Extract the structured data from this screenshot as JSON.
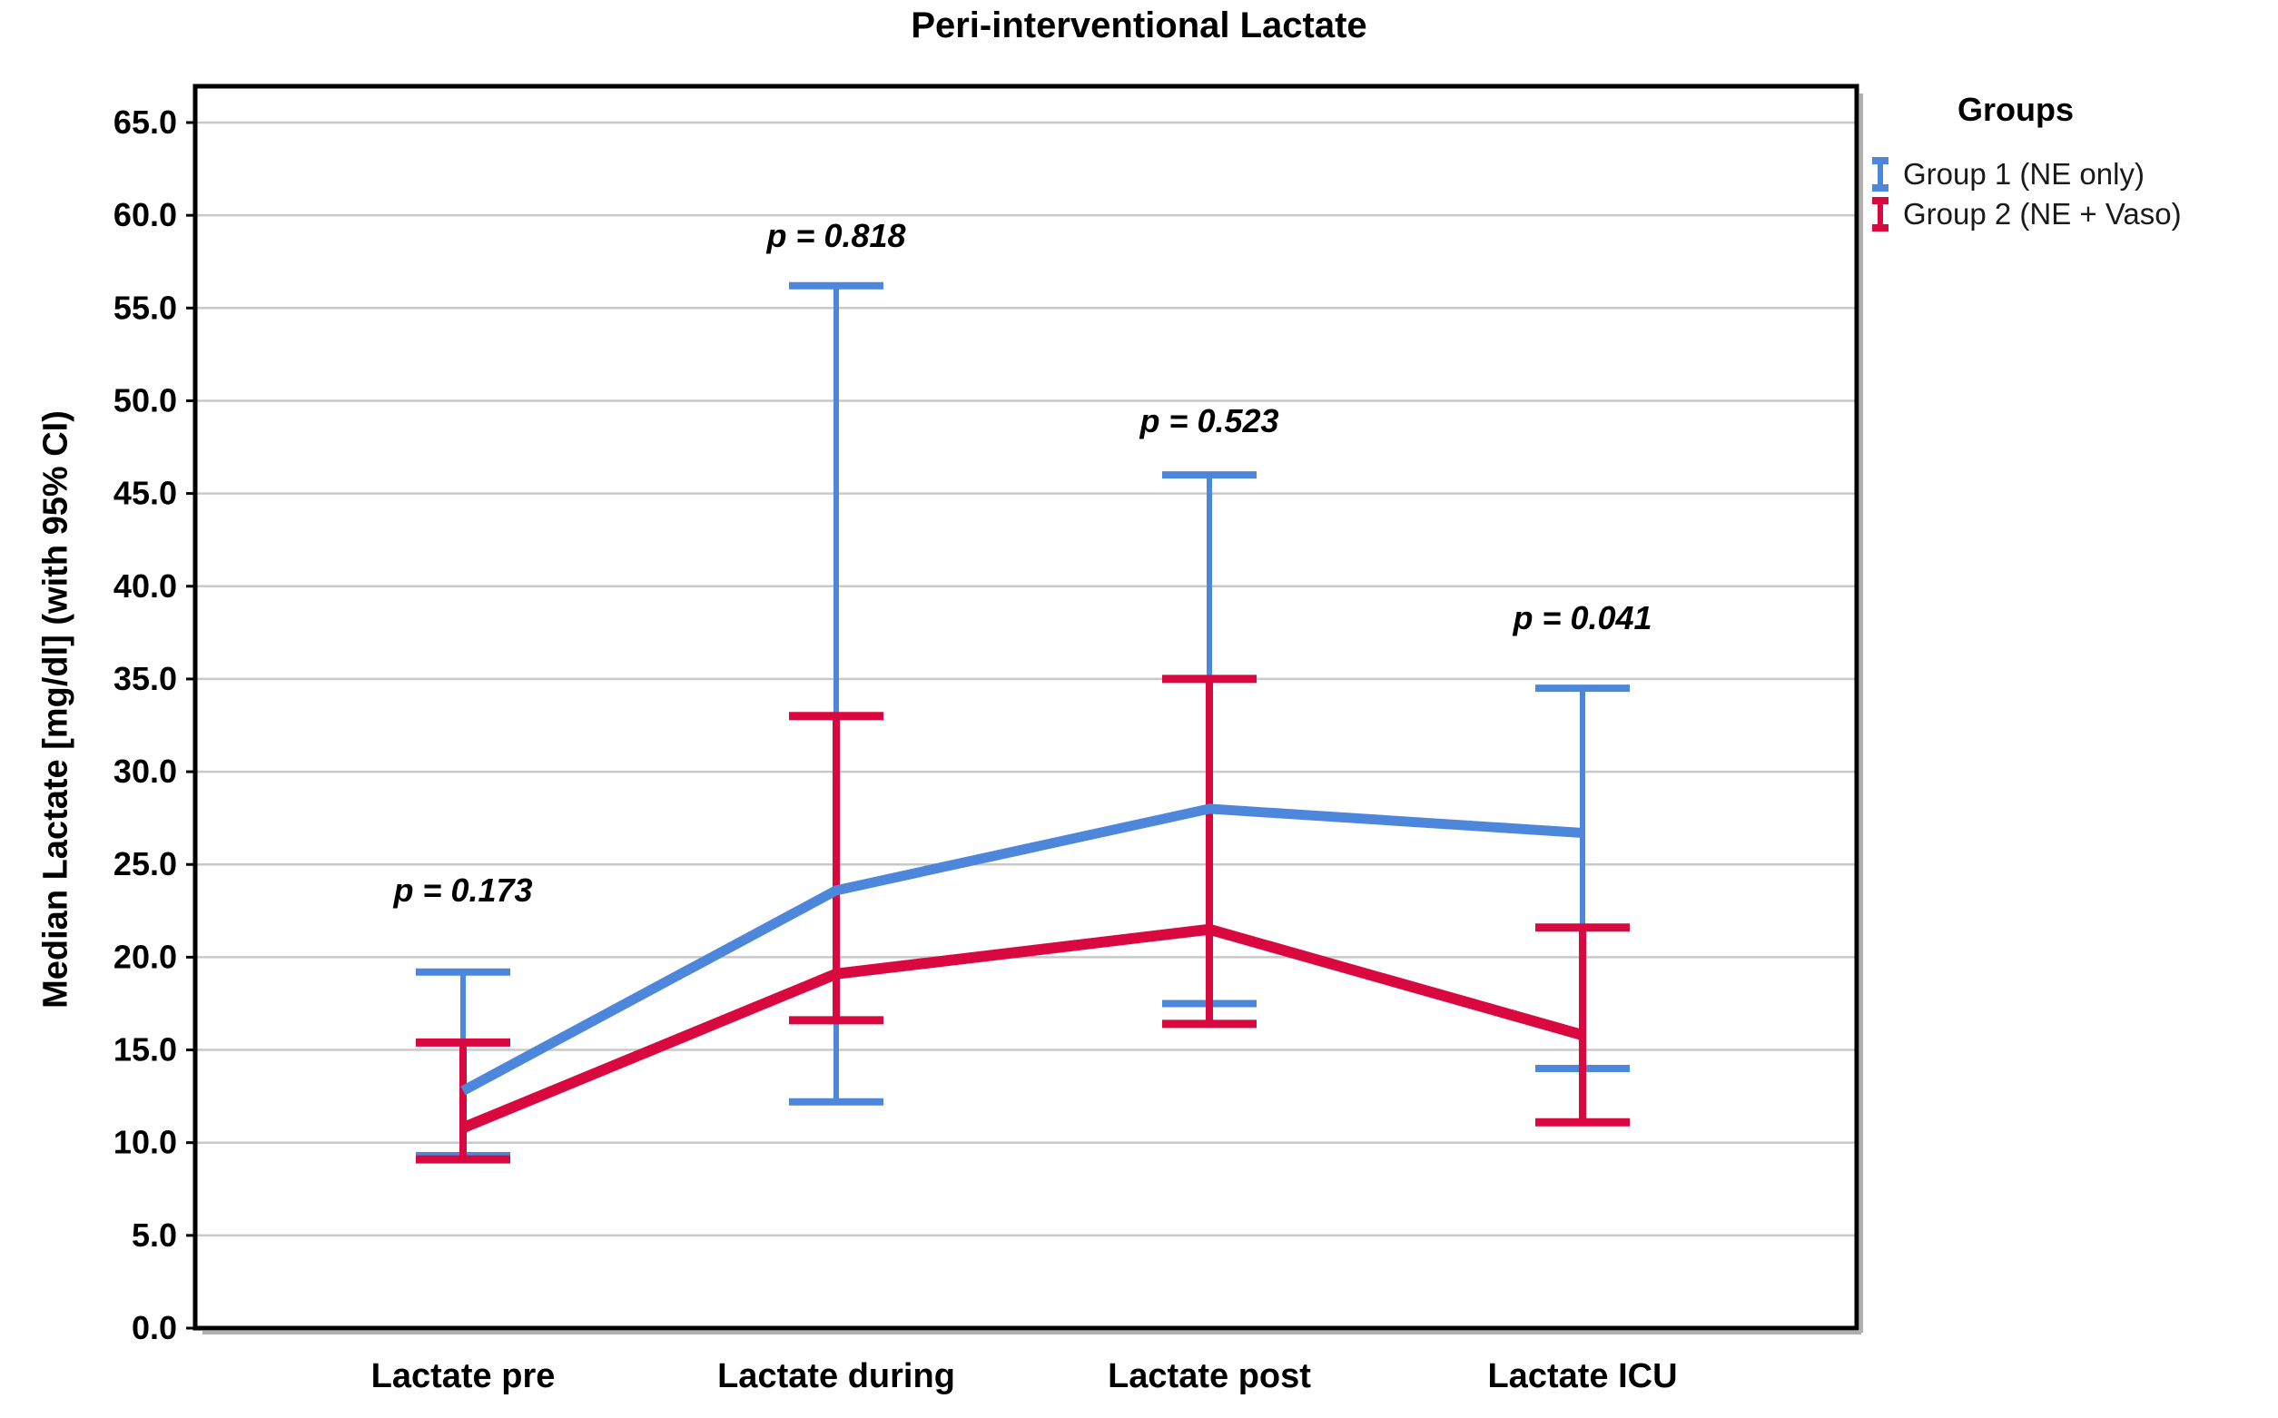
{
  "figure": {
    "title": "Peri-interventional Lactate"
  },
  "legend": {
    "title": "Groups",
    "entries": [
      {
        "label": "Group 1 (NE only)",
        "color": "#4D87DC"
      },
      {
        "label": "Group 2 (NE + Vaso)",
        "color": "#D9083F"
      }
    ],
    "position": "top-right"
  },
  "colors": {
    "group1_blue": "#4D87DC",
    "group2_red": "#D9083F",
    "gridline": "#C9C9C9",
    "frame": "#000000",
    "frame_shadow": "#B0B0B0",
    "background": "#FFFFFF",
    "text": "#000000"
  },
  "chart_data": {
    "type": "line",
    "title": "Peri-interventional Lactate",
    "xlabel": "",
    "ylabel": "Median Lactate [mg/dl] (with 95% CI)",
    "categories": [
      "Lactate pre",
      "Lactate during",
      "Lactate post",
      "Lactate ICU"
    ],
    "series": [
      {
        "name": "Group 1 (NE only)",
        "color": "#4D87DC",
        "means": [
          12.8,
          23.6,
          28.0,
          26.7
        ],
        "ci_low": [
          9.3,
          12.2,
          17.5,
          14.0
        ],
        "ci_high": [
          19.2,
          56.2,
          46.0,
          34.5
        ]
      },
      {
        "name": "Group 2 (NE + Vaso)",
        "color": "#D9083F",
        "means": [
          10.8,
          19.1,
          21.5,
          15.8
        ],
        "ci_low": [
          9.1,
          16.6,
          16.4,
          11.1
        ],
        "ci_high": [
          15.4,
          33.0,
          35.0,
          21.6
        ]
      }
    ],
    "annotations": [
      {
        "text": "p = 0.173",
        "x_category": "Lactate pre",
        "y": 23.0
      },
      {
        "text": "p = 0.818",
        "x_category": "Lactate during",
        "y": 58.3
      },
      {
        "text": "p = 0.523",
        "x_category": "Lactate post",
        "y": 48.3
      },
      {
        "text": "p = 0.041",
        "x_category": "Lactate ICU",
        "y": 37.7
      }
    ],
    "ylim": [
      0.0,
      65.0
    ],
    "ytick_step": 5.0,
    "ytick_format": "one_decimal",
    "grid": "horizontal",
    "error_bars": "95% CI with caps",
    "legend_position": "top-right"
  }
}
